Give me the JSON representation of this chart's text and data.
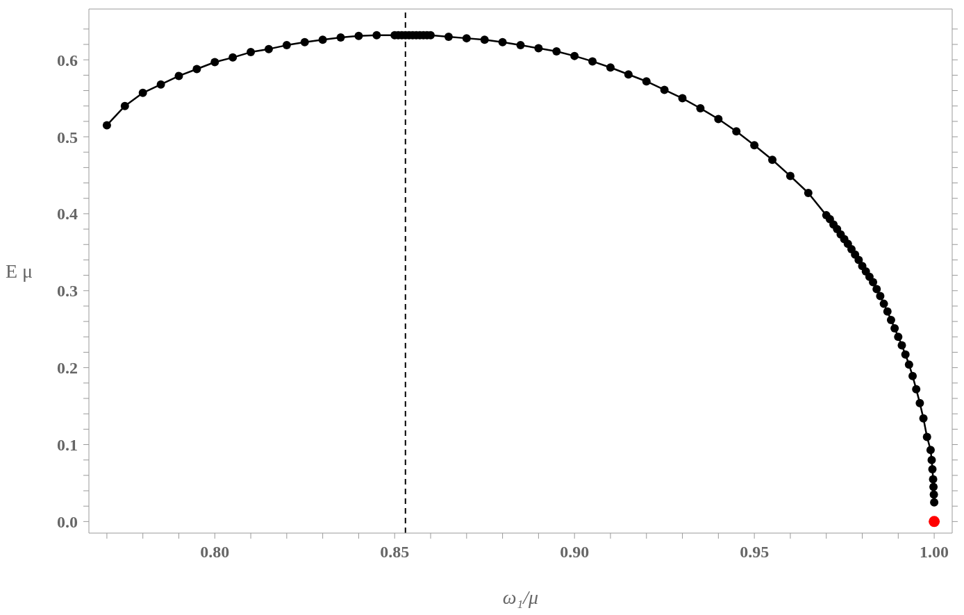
{
  "chart_data": {
    "type": "line",
    "xlabel": "ω₁/μ",
    "ylabel": "E μ",
    "xlim": [
      0.765,
      1.005
    ],
    "ylim": [
      -0.015,
      0.666
    ],
    "xticks": [
      {
        "value": 0.77,
        "label": null
      },
      {
        "value": 0.78,
        "label": null
      },
      {
        "value": 0.79,
        "label": null
      },
      {
        "value": 0.8,
        "label": "0.80"
      },
      {
        "value": 0.81,
        "label": null
      },
      {
        "value": 0.82,
        "label": null
      },
      {
        "value": 0.83,
        "label": null
      },
      {
        "value": 0.84,
        "label": null
      },
      {
        "value": 0.85,
        "label": "0.85"
      },
      {
        "value": 0.86,
        "label": null
      },
      {
        "value": 0.87,
        "label": null
      },
      {
        "value": 0.88,
        "label": null
      },
      {
        "value": 0.89,
        "label": null
      },
      {
        "value": 0.9,
        "label": "0.90"
      },
      {
        "value": 0.91,
        "label": null
      },
      {
        "value": 0.92,
        "label": null
      },
      {
        "value": 0.93,
        "label": null
      },
      {
        "value": 0.94,
        "label": null
      },
      {
        "value": 0.95,
        "label": "0.95"
      },
      {
        "value": 0.96,
        "label": null
      },
      {
        "value": 0.97,
        "label": null
      },
      {
        "value": 0.98,
        "label": null
      },
      {
        "value": 0.99,
        "label": null
      },
      {
        "value": 1.0,
        "label": "1.00"
      }
    ],
    "yticks": [
      {
        "value": 0,
        "label": "0.0"
      },
      {
        "value": 0.02,
        "label": null
      },
      {
        "value": 0.04,
        "label": null
      },
      {
        "value": 0.06,
        "label": null
      },
      {
        "value": 0.08,
        "label": null
      },
      0.1,
      {
        "value": 0.12,
        "label": null
      },
      {
        "value": 0.14,
        "label": null
      },
      {
        "value": 0.16,
        "label": null
      },
      {
        "value": 0.18,
        "label": null
      },
      0.2,
      {
        "value": 0.22,
        "label": null
      },
      {
        "value": 0.24,
        "label": null
      },
      {
        "value": 0.26,
        "label": null
      },
      {
        "value": 0.28,
        "label": null
      },
      0.3,
      {
        "value": 0.32,
        "label": null
      },
      {
        "value": 0.34,
        "label": null
      },
      {
        "value": 0.36,
        "label": null
      },
      {
        "value": 0.38,
        "label": null
      },
      0.4,
      {
        "value": 0.42,
        "label": null
      },
      {
        "value": 0.44,
        "label": null
      },
      {
        "value": 0.46,
        "label": null
      },
      {
        "value": 0.48,
        "label": null
      },
      0.5,
      {
        "value": 0.52,
        "label": null
      },
      {
        "value": 0.54,
        "label": null
      },
      {
        "value": 0.56,
        "label": null
      },
      {
        "value": 0.58,
        "label": null
      },
      0.6,
      {
        "value": 0.62,
        "label": null
      },
      {
        "value": 0.64,
        "label": null
      }
    ],
    "marker": "circle",
    "line_style": "solid",
    "ref_lines": [
      {
        "axis": "x",
        "value": 0.853,
        "color": "#000000",
        "line_style": "dashed"
      }
    ],
    "series": [
      {
        "color": "#000000",
        "x": [
          0.77,
          0.775,
          0.78,
          0.785,
          0.79,
          0.795,
          0.8,
          0.805,
          0.81,
          0.815,
          0.82,
          0.825,
          0.83,
          0.835,
          0.84,
          0.845,
          0.85,
          0.851,
          0.852,
          0.853,
          0.854,
          0.855,
          0.856,
          0.857,
          0.858,
          0.859,
          0.86,
          0.865,
          0.87,
          0.875,
          0.88,
          0.885,
          0.89,
          0.895,
          0.9,
          0.905,
          0.91,
          0.915,
          0.92,
          0.925,
          0.93,
          0.935,
          0.94,
          0.945,
          0.95,
          0.955,
          0.96,
          0.965,
          0.97,
          0.971,
          0.972,
          0.973,
          0.974,
          0.975,
          0.976,
          0.977,
          0.978,
          0.979,
          0.98,
          0.981,
          0.982,
          0.983,
          0.984,
          0.985,
          0.986,
          0.987,
          0.988,
          0.989,
          0.99,
          0.991,
          0.992,
          0.993,
          0.994,
          0.995,
          0.996,
          0.997,
          0.998,
          0.999,
          0.9993,
          0.9995,
          0.9997,
          0.9998,
          0.9999,
          1.0
        ],
        "values": [
          0.515,
          0.54,
          0.557,
          0.568,
          0.579,
          0.588,
          0.597,
          0.603,
          0.61,
          0.614,
          0.619,
          0.623,
          0.626,
          0.629,
          0.631,
          0.632,
          0.632,
          0.632,
          0.632,
          0.632,
          0.632,
          0.632,
          0.632,
          0.632,
          0.632,
          0.632,
          0.632,
          0.63,
          0.628,
          0.626,
          0.623,
          0.619,
          0.615,
          0.611,
          0.605,
          0.598,
          0.59,
          0.581,
          0.572,
          0.561,
          0.55,
          0.537,
          0.523,
          0.507,
          0.489,
          0.47,
          0.449,
          0.427,
          0.398,
          0.393,
          0.386,
          0.38,
          0.373,
          0.367,
          0.361,
          0.354,
          0.347,
          0.34,
          0.332,
          0.325,
          0.318,
          0.311,
          0.302,
          0.293,
          0.283,
          0.273,
          0.262,
          0.251,
          0.24,
          0.229,
          0.217,
          0.204,
          0.189,
          0.172,
          0.154,
          0.134,
          0.11,
          0.093,
          0.08,
          0.068,
          0.055,
          0.045,
          0.035,
          0.025
        ]
      },
      {
        "type": "scatter",
        "color": "#ff0000",
        "x": [
          1.0
        ],
        "values": [
          0.0
        ]
      }
    ]
  }
}
